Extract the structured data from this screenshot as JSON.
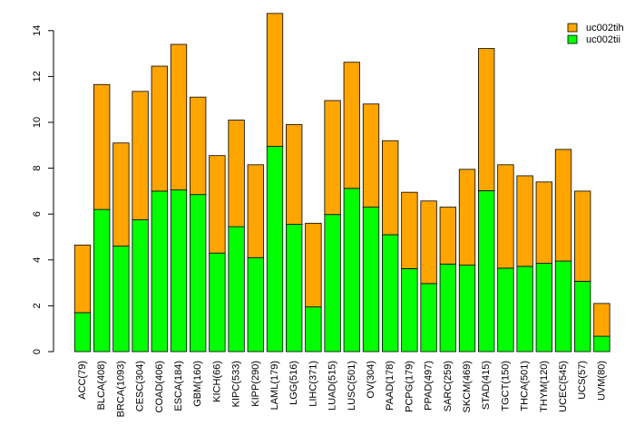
{
  "chart_data": {
    "type": "bar",
    "stacked": true,
    "categories": [
      "ACC(79)",
      "BLCA(408)",
      "BRCA(1093)",
      "CESC(304)",
      "COAD(406)",
      "ESCA(184)",
      "GBM(160)",
      "KICH(66)",
      "KIPC(533)",
      "KIPP(290)",
      "LAML(179)",
      "LGG(516)",
      "LIHC(371)",
      "LUAD(515)",
      "LUSC(501)",
      "OV(304)",
      "PAAD(178)",
      "PCPG(179)",
      "PPAD(497)",
      "SARC(259)",
      "SKCM(469)",
      "STAD(415)",
      "TGCT(150)",
      "THCA(501)",
      "THYM(120)",
      "UCEC(545)",
      "UCS(57)",
      "UVM(80)"
    ],
    "series": [
      {
        "name": "uc002tii",
        "color": "#00ff00",
        "values": [
          1.7,
          6.2,
          4.6,
          5.75,
          7.0,
          7.05,
          6.85,
          4.3,
          5.45,
          4.1,
          8.95,
          5.55,
          1.95,
          5.98,
          7.12,
          6.3,
          5.1,
          3.62,
          2.97,
          3.82,
          3.77,
          7.02,
          3.64,
          3.72,
          3.85,
          3.95,
          3.07,
          0.67
        ]
      },
      {
        "name": "uc002tih",
        "color": "#ffa500",
        "values": [
          2.95,
          5.45,
          4.5,
          5.6,
          5.45,
          6.35,
          4.25,
          4.25,
          4.65,
          4.05,
          5.8,
          4.35,
          3.65,
          4.97,
          5.5,
          4.5,
          4.1,
          3.33,
          3.6,
          2.48,
          4.18,
          6.2,
          4.51,
          3.95,
          3.55,
          4.87,
          3.93,
          1.43
        ]
      }
    ],
    "legend_order": [
      "uc002tih",
      "uc002tii"
    ],
    "legend_position": "top-right",
    "yticks": [
      "0",
      "2",
      "4",
      "6",
      "8",
      "10",
      "12",
      "14"
    ],
    "ylim": [
      0,
      14.9
    ],
    "grid": false,
    "title": "",
    "xlabel": "",
    "ylabel": ""
  }
}
